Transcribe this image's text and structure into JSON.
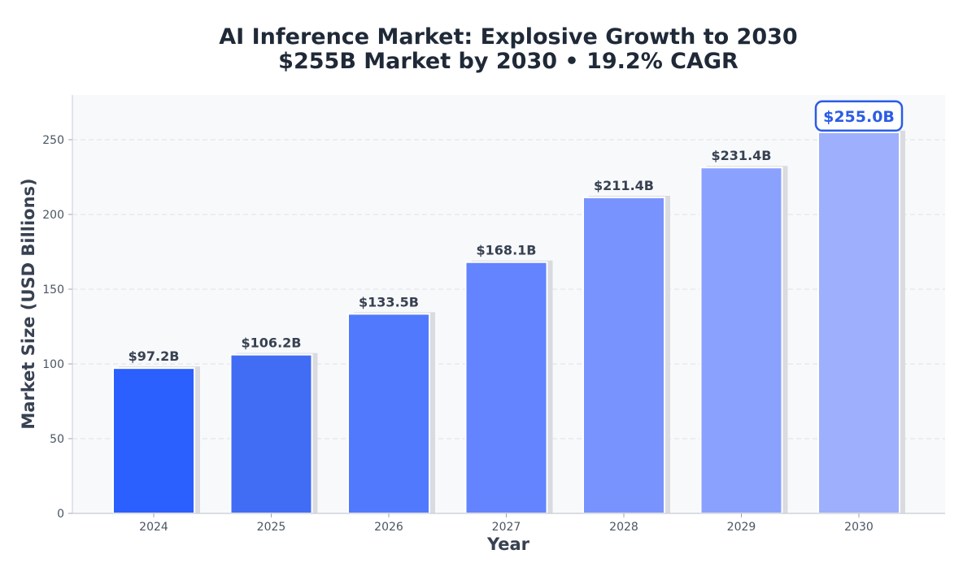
{
  "chart_data": {
    "type": "bar",
    "title": "AI Inference Market: Explosive Growth to 2030",
    "subtitle": "$255B Market by 2030 • 19.2% CAGR",
    "xlabel": "Year",
    "ylabel": "Market Size (USD Billions)",
    "categories": [
      "2024",
      "2025",
      "2026",
      "2027",
      "2028",
      "2029",
      "2030"
    ],
    "values": [
      97.2,
      106.2,
      133.5,
      168.1,
      211.4,
      231.4,
      255.0
    ],
    "value_labels": [
      "$97.2B",
      "$106.2B",
      "$133.5B",
      "$168.1B",
      "$211.4B",
      "$231.4B",
      "$255.0B"
    ],
    "yticks": [
      "0",
      "50",
      "100",
      "150",
      "200",
      "250"
    ],
    "ylim": [
      0,
      280
    ],
    "grid": true,
    "highlight_index": 6,
    "bar_colors": [
      "#2b5ffe",
      "#416cf4",
      "#5079fd",
      "#6483fe",
      "#7993fe",
      "#8aa2fe",
      "#9eaffe"
    ],
    "highlight_color": "#2b5ce6"
  }
}
